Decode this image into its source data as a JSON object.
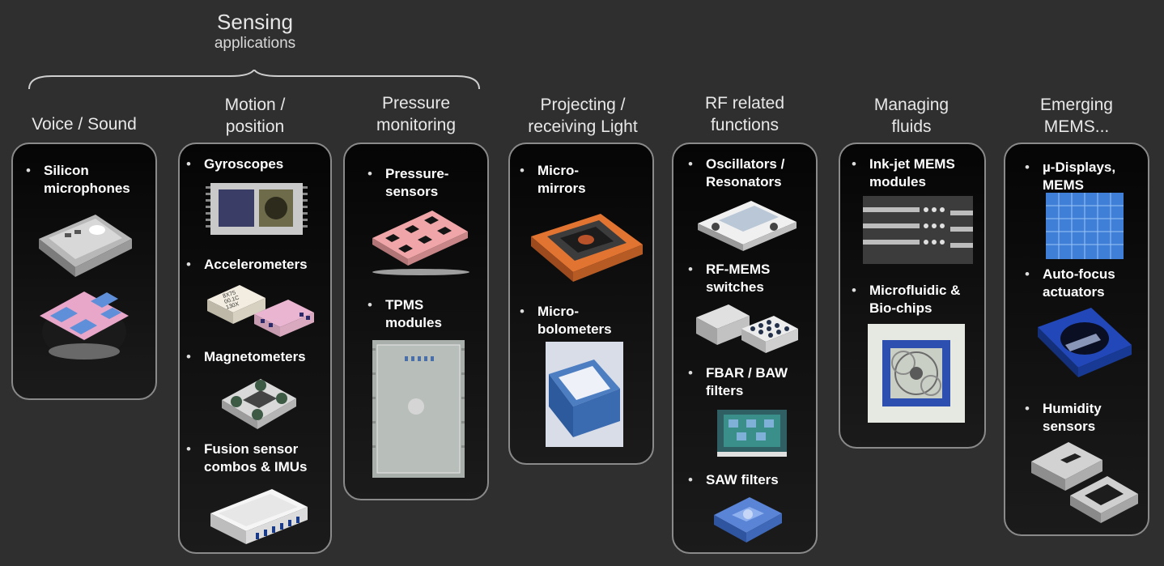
{
  "group": {
    "title": "Sensing",
    "subtitle": "applications"
  },
  "columns": [
    {
      "title": [
        "Voice / Sound"
      ],
      "items": [
        "Silicon microphones"
      ]
    },
    {
      "title": [
        "Motion /",
        "position"
      ],
      "items": [
        "Gyroscopes",
        "Accelerometers",
        "Magnetometers",
        "Fusion sensor combos & IMUs"
      ]
    },
    {
      "title": [
        "Pressure",
        "monitoring"
      ],
      "items": [
        "Pressure-sensors",
        "TPMS modules"
      ]
    },
    {
      "title": [
        "Projecting /",
        "receiving Light"
      ],
      "items": [
        "Micro-mirrors",
        "Micro-bolometers"
      ]
    },
    {
      "title": [
        "RF related",
        "functions"
      ],
      "items": [
        "Oscillators / Resonators",
        "RF-MEMS switches",
        "FBAR / BAW filters",
        "SAW filters"
      ]
    },
    {
      "title": [
        "Managing",
        "fluids"
      ],
      "items": [
        "Ink-jet MEMS modules",
        "Microfluidic & Bio-chips"
      ]
    },
    {
      "title": [
        "Emerging",
        "MEMS..."
      ],
      "items": [
        "µ-Displays, MEMS",
        "Auto-focus actuators",
        "Humidity sensors"
      ]
    }
  ],
  "labels": {
    "silicon_1": "Silicon",
    "silicon_2": "microphones",
    "gyro": "Gyroscopes",
    "accel": "Accelerometers",
    "magneto": "Magnetometers",
    "fusion_1": "Fusion sensor",
    "fusion_2": "combos & IMUs",
    "pressure_1": "Pressure-",
    "pressure_2": "sensors",
    "tpms_1": "TPMS",
    "tpms_2": "modules",
    "mirror_1": "Micro-",
    "mirror_2": "mirrors",
    "bolo_1": "Micro-",
    "bolo_2": "bolometers",
    "osc_1": "Oscillators /",
    "osc_2": "Resonators",
    "rfmems_1": "RF-MEMS",
    "rfmems_2": "switches",
    "fbar_1": "FBAR / BAW",
    "fbar_2": "filters",
    "saw": "SAW filters",
    "inkjet_1": "Ink-jet MEMS",
    "inkjet_2": "modules",
    "micro_1": "Microfluidic &",
    "micro_2": "Bio-chips",
    "disp_1": "µ-Displays,",
    "disp_2": "MEMS",
    "af_1": "Auto-focus",
    "af_2": "actuators",
    "hum_1": "Humidity",
    "hum_2": "sensors",
    "chip_text_1": "8X75",
    "chip_text_2": "00.1C",
    "chip_text_3": "130X"
  },
  "colors": {
    "background": "#2f2f2f",
    "card_border": "#8a8a8a",
    "pad_pink": "#e8a6c8",
    "pad_blue": "#5f8fd8"
  }
}
